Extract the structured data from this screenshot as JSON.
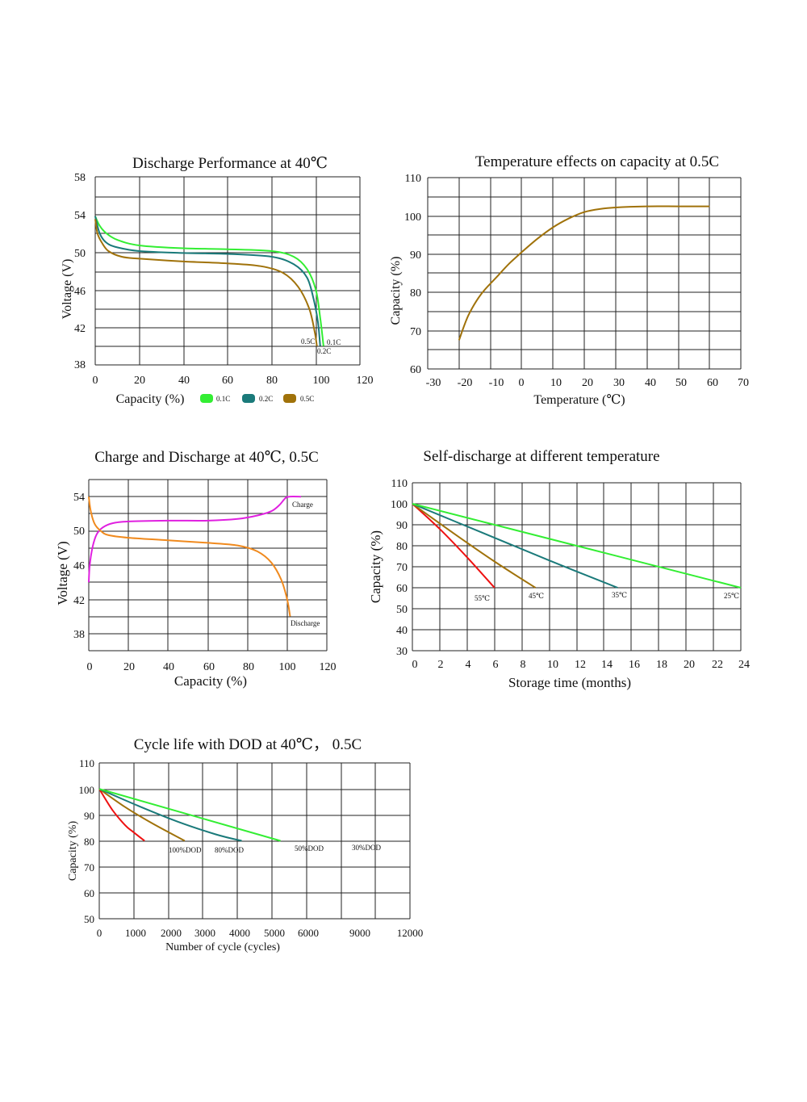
{
  "colors": {
    "c01": "#33ee33",
    "c02": "#1a7a7a",
    "c05": "#a0720a",
    "charge": "#e020e0",
    "discharge": "#f08a1e",
    "t55": "#ee1111",
    "t45": "#a0720a",
    "t35": "#1a7a7a",
    "t25": "#33ee33"
  },
  "chart_data": [
    {
      "type": "line",
      "title": "Discharge  Performance  at 40℃",
      "xlabel": "Capacity (%)",
      "ylabel": "Voltage (V)",
      "xlim": [
        0,
        120
      ],
      "ylim": [
        38,
        58
      ],
      "xticks": [
        "0",
        "20",
        "40",
        "60",
        "80",
        "100",
        "120"
      ],
      "yticks": [
        "38",
        "42",
        "46",
        "50",
        "54",
        "58"
      ],
      "legend": [
        "0.1C",
        "0.2C",
        "0.5C"
      ],
      "series": [
        {
          "name": "0.1C",
          "label": "0.1C",
          "color_key": "c01",
          "points": [
            [
              0,
              53.8
            ],
            [
              2,
              52.8
            ],
            [
              5,
              52
            ],
            [
              10,
              51.3
            ],
            [
              20,
              50.7
            ],
            [
              40,
              50.4
            ],
            [
              60,
              50.3
            ],
            [
              80,
              50.1
            ],
            [
              90,
              49.5
            ],
            [
              96,
              48.2
            ],
            [
              100,
              46
            ],
            [
              102,
              43
            ],
            [
              103.5,
              40
            ]
          ]
        },
        {
          "name": "0.2C",
          "label": "0.2C",
          "color_key": "c02",
          "points": [
            [
              0,
              53.8
            ],
            [
              2,
              52
            ],
            [
              5,
              51
            ],
            [
              10,
              50.5
            ],
            [
              20,
              50.1
            ],
            [
              40,
              49.9
            ],
            [
              60,
              49.8
            ],
            [
              80,
              49.5
            ],
            [
              90,
              48.7
            ],
            [
              96,
              47.3
            ],
            [
              99,
              45
            ],
            [
              101,
              42.5
            ],
            [
              102,
              40
            ]
          ]
        },
        {
          "name": "0.5C",
          "label": "0.5C",
          "color_key": "c05",
          "points": [
            [
              0,
              53.5
            ],
            [
              1,
              52
            ],
            [
              3,
              51
            ],
            [
              6,
              50.1
            ],
            [
              12,
              49.5
            ],
            [
              20,
              49.3
            ],
            [
              40,
              49
            ],
            [
              60,
              48.8
            ],
            [
              75,
              48.5
            ],
            [
              85,
              47.8
            ],
            [
              92,
              46.3
            ],
            [
              97,
              44
            ],
            [
              99.5,
              41.5
            ],
            [
              100.5,
              40
            ]
          ]
        }
      ]
    },
    {
      "type": "line",
      "title": "Temperature effects on capacity at 0.5C",
      "xlabel": "Temperature (℃)",
      "ylabel": "Capacity (%)",
      "xlim": [
        -30,
        70
      ],
      "ylim": [
        60,
        110
      ],
      "xticks": [
        "-30",
        "-20",
        "-10",
        "0",
        "10",
        "20",
        "30",
        "40",
        "50",
        "60",
        "70"
      ],
      "yticks": [
        "60",
        "70",
        "80",
        "90",
        "100",
        "110"
      ],
      "series": [
        {
          "color_key": "c05",
          "points": [
            [
              -20,
              67.5
            ],
            [
              -17,
              74
            ],
            [
              -13,
              79.5
            ],
            [
              -8,
              84
            ],
            [
              -4,
              87.5
            ],
            [
              0,
              90.5
            ],
            [
              5,
              94
            ],
            [
              10,
              97
            ],
            [
              15,
              99.3
            ],
            [
              20,
              101
            ],
            [
              25,
              101.8
            ],
            [
              30,
              102.2
            ],
            [
              40,
              102.5
            ],
            [
              50,
              102.5
            ],
            [
              60,
              102.5
            ]
          ]
        }
      ]
    },
    {
      "type": "line",
      "title": "Charge and Discharge at 40℃, 0.5C",
      "xlabel": "Capacity (%)",
      "ylabel": "Voltage (V)",
      "xlim": [
        0,
        120
      ],
      "ylim": [
        36,
        56
      ],
      "xticks": [
        "0",
        "20",
        "40",
        "60",
        "80",
        "100",
        "120"
      ],
      "yticks": [
        "38",
        "42",
        "46",
        "50",
        "54"
      ],
      "series": [
        {
          "name": "Charge",
          "label": "Charge",
          "color_key": "charge",
          "points": [
            [
              0,
              44
            ],
            [
              0.5,
              46
            ],
            [
              2,
              48.2
            ],
            [
              4,
              49.6
            ],
            [
              7,
              50.4
            ],
            [
              12,
              50.9
            ],
            [
              20,
              51.1
            ],
            [
              40,
              51.2
            ],
            [
              60,
              51.2
            ],
            [
              75,
              51.4
            ],
            [
              85,
              51.8
            ],
            [
              92,
              52.3
            ],
            [
              96,
              53
            ],
            [
              99,
              53.8
            ],
            [
              101,
              54
            ],
            [
              107,
              54
            ]
          ]
        },
        {
          "name": "Discharge",
          "label": "Discharge",
          "color_key": "discharge",
          "points": [
            [
              0,
              54
            ],
            [
              1,
              52.3
            ],
            [
              3,
              50.8
            ],
            [
              6,
              50
            ],
            [
              10,
              49.5
            ],
            [
              20,
              49.2
            ],
            [
              40,
              48.9
            ],
            [
              60,
              48.6
            ],
            [
              75,
              48.3
            ],
            [
              85,
              47.6
            ],
            [
              92,
              46.3
            ],
            [
              97,
              44.3
            ],
            [
              100,
              42
            ],
            [
              101.5,
              40
            ]
          ]
        }
      ]
    },
    {
      "type": "line",
      "title": "Self-discharge at different temperature",
      "xlabel": "Storage time (months)",
      "ylabel": "Capacity (%)",
      "xlim": [
        0,
        24
      ],
      "ylim": [
        30,
        110
      ],
      "xticks": [
        "0",
        "2",
        "4",
        "6",
        "8",
        "10",
        "12",
        "14",
        "16",
        "18",
        "20",
        "22",
        "24"
      ],
      "yticks": [
        "30",
        "40",
        "50",
        "60",
        "70",
        "80",
        "90",
        "100",
        "110"
      ],
      "series": [
        {
          "name": "55℃",
          "label": "55℃",
          "color_key": "t55",
          "points": [
            [
              0,
              100
            ],
            [
              2,
              88
            ],
            [
              4,
              74.5
            ],
            [
              6,
              60
            ]
          ]
        },
        {
          "name": "45℃",
          "label": "45℃",
          "color_key": "t45",
          "points": [
            [
              0,
              100
            ],
            [
              3,
              86
            ],
            [
              6,
              72.5
            ],
            [
              9,
              60
            ]
          ]
        },
        {
          "name": "35℃",
          "label": "35℃",
          "color_key": "t35",
          "points": [
            [
              0,
              100
            ],
            [
              5,
              86.5
            ],
            [
              10,
              73
            ],
            [
              15,
              60
            ]
          ]
        },
        {
          "name": "25℃",
          "label": "25℃",
          "color_key": "t25",
          "points": [
            [
              0,
              100
            ],
            [
              24,
              60
            ]
          ]
        }
      ]
    },
    {
      "type": "line",
      "title": "Cycle life with DOD   at 40℃， 0.5C",
      "xlabel": "Number of cycle (cycles)",
      "ylabel": "Capacity (%)",
      "xlim": [
        0,
        12000
      ],
      "ylim": [
        50,
        110
      ],
      "xticks": [
        "0",
        "1000",
        "2000",
        "3000",
        "4000",
        "5000",
        "6000",
        "9000",
        "12000"
      ],
      "yticks": [
        "50",
        "60",
        "70",
        "80",
        "90",
        "100",
        "110"
      ],
      "series": [
        {
          "name": "100%DOD",
          "label": "100%DOD",
          "color_key": "t55",
          "points": [
            [
              0,
              100
            ],
            [
              500,
              92
            ],
            [
              1000,
              86
            ],
            [
              1300,
              83.5
            ],
            [
              1750,
              80
            ]
          ]
        },
        {
          "name": "80%DOD",
          "label": "80%DOD",
          "color_key": "t45",
          "points": [
            [
              0,
              100
            ],
            [
              1000,
              93
            ],
            [
              2000,
              87
            ],
            [
              3300,
              80
            ]
          ]
        },
        {
          "name": "50%DOD",
          "label": "50%DOD",
          "color_key": "t35",
          "points": [
            [
              0,
              100
            ],
            [
              1500,
              93.5
            ],
            [
              3000,
              87.5
            ],
            [
              4500,
              82.5
            ],
            [
              5500,
              80
            ]
          ]
        },
        {
          "name": "30%DOD",
          "label": "30%DOD",
          "color_key": "t25",
          "points": [
            [
              0,
              100
            ],
            [
              7000,
              80
            ]
          ]
        }
      ]
    }
  ]
}
